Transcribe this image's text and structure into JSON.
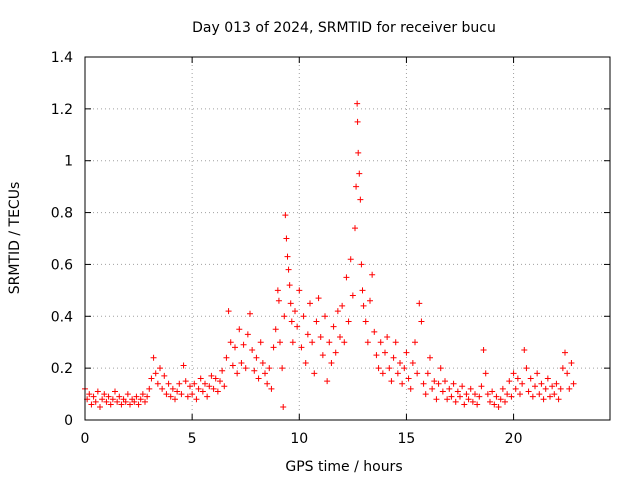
{
  "chart_data": {
    "type": "scatter",
    "title": "Day 013 of 2024, SRMTID for receiver bucu",
    "xlabel": "GPS time / hours",
    "ylabel": "SRMTID / TECUs",
    "xlim": [
      0,
      24.5
    ],
    "ylim": [
      0,
      1.4
    ],
    "x_ticks": [
      0,
      5,
      10,
      15,
      20
    ],
    "x_tick_labels": [
      "0",
      "5",
      "10",
      "15",
      "20"
    ],
    "y_ticks": [
      0,
      0.2,
      0.4,
      0.6,
      0.8,
      1.0,
      1.2,
      1.4
    ],
    "y_tick_labels": [
      "0",
      "0.2",
      "0.4",
      "0.6",
      "0.8",
      "1",
      "1.2",
      "1.4"
    ],
    "grid": true,
    "marker": "+",
    "color": "#ff0000",
    "series": [
      {
        "name": "SRMTID",
        "points": [
          [
            0.0,
            0.12
          ],
          [
            0.1,
            0.08
          ],
          [
            0.2,
            0.1
          ],
          [
            0.3,
            0.06
          ],
          [
            0.4,
            0.09
          ],
          [
            0.5,
            0.07
          ],
          [
            0.6,
            0.11
          ],
          [
            0.7,
            0.05
          ],
          [
            0.8,
            0.08
          ],
          [
            0.9,
            0.1
          ],
          [
            1.0,
            0.07
          ],
          [
            1.1,
            0.09
          ],
          [
            1.2,
            0.06
          ],
          [
            1.3,
            0.08
          ],
          [
            1.4,
            0.11
          ],
          [
            1.5,
            0.07
          ],
          [
            1.6,
            0.09
          ],
          [
            1.7,
            0.06
          ],
          [
            1.8,
            0.08
          ],
          [
            1.9,
            0.07
          ],
          [
            2.0,
            0.1
          ],
          [
            2.1,
            0.06
          ],
          [
            2.2,
            0.08
          ],
          [
            2.3,
            0.07
          ],
          [
            2.4,
            0.09
          ],
          [
            2.5,
            0.06
          ],
          [
            2.6,
            0.08
          ],
          [
            2.7,
            0.1
          ],
          [
            2.8,
            0.07
          ],
          [
            2.9,
            0.09
          ],
          [
            3.0,
            0.12
          ],
          [
            3.1,
            0.16
          ],
          [
            3.2,
            0.24
          ],
          [
            3.3,
            0.18
          ],
          [
            3.4,
            0.14
          ],
          [
            3.5,
            0.2
          ],
          [
            3.6,
            0.12
          ],
          [
            3.7,
            0.17
          ],
          [
            3.8,
            0.1
          ],
          [
            3.9,
            0.14
          ],
          [
            4.0,
            0.09
          ],
          [
            4.1,
            0.12
          ],
          [
            4.2,
            0.08
          ],
          [
            4.3,
            0.11
          ],
          [
            4.4,
            0.14
          ],
          [
            4.5,
            0.1
          ],
          [
            4.6,
            0.21
          ],
          [
            4.7,
            0.15
          ],
          [
            4.8,
            0.09
          ],
          [
            4.9,
            0.13
          ],
          [
            5.0,
            0.1
          ],
          [
            5.1,
            0.14
          ],
          [
            5.2,
            0.08
          ],
          [
            5.3,
            0.12
          ],
          [
            5.4,
            0.16
          ],
          [
            5.5,
            0.11
          ],
          [
            5.6,
            0.14
          ],
          [
            5.7,
            0.09
          ],
          [
            5.8,
            0.13
          ],
          [
            5.9,
            0.17
          ],
          [
            6.0,
            0.12
          ],
          [
            6.1,
            0.16
          ],
          [
            6.2,
            0.11
          ],
          [
            6.3,
            0.15
          ],
          [
            6.4,
            0.19
          ],
          [
            6.5,
            0.13
          ],
          [
            6.6,
            0.24
          ],
          [
            6.7,
            0.42
          ],
          [
            6.8,
            0.3
          ],
          [
            6.9,
            0.21
          ],
          [
            7.0,
            0.28
          ],
          [
            7.1,
            0.18
          ],
          [
            7.2,
            0.35
          ],
          [
            7.3,
            0.22
          ],
          [
            7.4,
            0.29
          ],
          [
            7.5,
            0.2
          ],
          [
            7.6,
            0.33
          ],
          [
            7.7,
            0.41
          ],
          [
            7.8,
            0.27
          ],
          [
            7.9,
            0.19
          ],
          [
            8.0,
            0.24
          ],
          [
            8.1,
            0.16
          ],
          [
            8.2,
            0.3
          ],
          [
            8.3,
            0.22
          ],
          [
            8.4,
            0.18
          ],
          [
            8.5,
            0.14
          ],
          [
            8.6,
            0.2
          ],
          [
            8.7,
            0.12
          ],
          [
            8.8,
            0.28
          ],
          [
            8.9,
            0.35
          ],
          [
            9.0,
            0.5
          ],
          [
            9.05,
            0.46
          ],
          [
            9.1,
            0.3
          ],
          [
            9.2,
            0.2
          ],
          [
            9.25,
            0.05
          ],
          [
            9.3,
            0.4
          ],
          [
            9.35,
            0.79
          ],
          [
            9.4,
            0.7
          ],
          [
            9.45,
            0.63
          ],
          [
            9.5,
            0.58
          ],
          [
            9.55,
            0.52
          ],
          [
            9.6,
            0.45
          ],
          [
            9.65,
            0.38
          ],
          [
            9.7,
            0.3
          ],
          [
            9.8,
            0.42
          ],
          [
            9.9,
            0.36
          ],
          [
            10.0,
            0.5
          ],
          [
            10.1,
            0.28
          ],
          [
            10.2,
            0.4
          ],
          [
            10.3,
            0.22
          ],
          [
            10.4,
            0.33
          ],
          [
            10.5,
            0.45
          ],
          [
            10.6,
            0.3
          ],
          [
            10.7,
            0.18
          ],
          [
            10.8,
            0.38
          ],
          [
            10.9,
            0.47
          ],
          [
            11.0,
            0.32
          ],
          [
            11.1,
            0.25
          ],
          [
            11.2,
            0.4
          ],
          [
            11.3,
            0.15
          ],
          [
            11.4,
            0.3
          ],
          [
            11.5,
            0.22
          ],
          [
            11.6,
            0.36
          ],
          [
            11.7,
            0.26
          ],
          [
            11.8,
            0.42
          ],
          [
            11.9,
            0.32
          ],
          [
            12.0,
            0.44
          ],
          [
            12.1,
            0.3
          ],
          [
            12.2,
            0.55
          ],
          [
            12.3,
            0.38
          ],
          [
            12.4,
            0.62
          ],
          [
            12.5,
            0.48
          ],
          [
            12.6,
            0.74
          ],
          [
            12.65,
            0.9
          ],
          [
            12.7,
            1.22
          ],
          [
            12.72,
            1.15
          ],
          [
            12.75,
            1.03
          ],
          [
            12.8,
            0.95
          ],
          [
            12.85,
            0.85
          ],
          [
            12.9,
            0.6
          ],
          [
            12.95,
            0.5
          ],
          [
            13.0,
            0.44
          ],
          [
            13.1,
            0.38
          ],
          [
            13.2,
            0.3
          ],
          [
            13.3,
            0.46
          ],
          [
            13.4,
            0.56
          ],
          [
            13.5,
            0.34
          ],
          [
            13.6,
            0.25
          ],
          [
            13.7,
            0.2
          ],
          [
            13.8,
            0.3
          ],
          [
            13.9,
            0.18
          ],
          [
            14.0,
            0.26
          ],
          [
            14.1,
            0.32
          ],
          [
            14.2,
            0.2
          ],
          [
            14.3,
            0.15
          ],
          [
            14.4,
            0.24
          ],
          [
            14.5,
            0.3
          ],
          [
            14.6,
            0.18
          ],
          [
            14.7,
            0.22
          ],
          [
            14.8,
            0.14
          ],
          [
            14.9,
            0.2
          ],
          [
            15.0,
            0.26
          ],
          [
            15.1,
            0.16
          ],
          [
            15.2,
            0.12
          ],
          [
            15.3,
            0.22
          ],
          [
            15.4,
            0.3
          ],
          [
            15.5,
            0.18
          ],
          [
            15.6,
            0.45
          ],
          [
            15.7,
            0.38
          ],
          [
            15.8,
            0.14
          ],
          [
            15.9,
            0.1
          ],
          [
            16.0,
            0.18
          ],
          [
            16.1,
            0.24
          ],
          [
            16.2,
            0.12
          ],
          [
            16.3,
            0.15
          ],
          [
            16.4,
            0.08
          ],
          [
            16.5,
            0.14
          ],
          [
            16.6,
            0.2
          ],
          [
            16.7,
            0.11
          ],
          [
            16.8,
            0.15
          ],
          [
            16.9,
            0.08
          ],
          [
            17.0,
            0.12
          ],
          [
            17.1,
            0.09
          ],
          [
            17.2,
            0.14
          ],
          [
            17.3,
            0.07
          ],
          [
            17.4,
            0.11
          ],
          [
            17.5,
            0.09
          ],
          [
            17.6,
            0.13
          ],
          [
            17.7,
            0.06
          ],
          [
            17.8,
            0.1
          ],
          [
            17.9,
            0.08
          ],
          [
            18.0,
            0.12
          ],
          [
            18.1,
            0.07
          ],
          [
            18.2,
            0.1
          ],
          [
            18.3,
            0.06
          ],
          [
            18.4,
            0.09
          ],
          [
            18.5,
            0.13
          ],
          [
            18.6,
            0.27
          ],
          [
            18.7,
            0.18
          ],
          [
            18.8,
            0.1
          ],
          [
            18.9,
            0.07
          ],
          [
            19.0,
            0.11
          ],
          [
            19.1,
            0.06
          ],
          [
            19.2,
            0.09
          ],
          [
            19.3,
            0.05
          ],
          [
            19.4,
            0.08
          ],
          [
            19.5,
            0.12
          ],
          [
            19.6,
            0.07
          ],
          [
            19.7,
            0.1
          ],
          [
            19.8,
            0.15
          ],
          [
            19.9,
            0.09
          ],
          [
            20.0,
            0.18
          ],
          [
            20.1,
            0.12
          ],
          [
            20.2,
            0.16
          ],
          [
            20.3,
            0.1
          ],
          [
            20.4,
            0.14
          ],
          [
            20.5,
            0.27
          ],
          [
            20.6,
            0.2
          ],
          [
            20.7,
            0.11
          ],
          [
            20.8,
            0.16
          ],
          [
            20.9,
            0.09
          ],
          [
            21.0,
            0.13
          ],
          [
            21.1,
            0.18
          ],
          [
            21.2,
            0.1
          ],
          [
            21.3,
            0.14
          ],
          [
            21.4,
            0.08
          ],
          [
            21.5,
            0.12
          ],
          [
            21.6,
            0.16
          ],
          [
            21.7,
            0.09
          ],
          [
            21.8,
            0.13
          ],
          [
            21.9,
            0.1
          ],
          [
            22.0,
            0.14
          ],
          [
            22.1,
            0.08
          ],
          [
            22.2,
            0.12
          ],
          [
            22.3,
            0.2
          ],
          [
            22.4,
            0.26
          ],
          [
            22.5,
            0.18
          ],
          [
            22.6,
            0.12
          ],
          [
            22.7,
            0.22
          ],
          [
            22.8,
            0.14
          ]
        ]
      }
    ]
  }
}
